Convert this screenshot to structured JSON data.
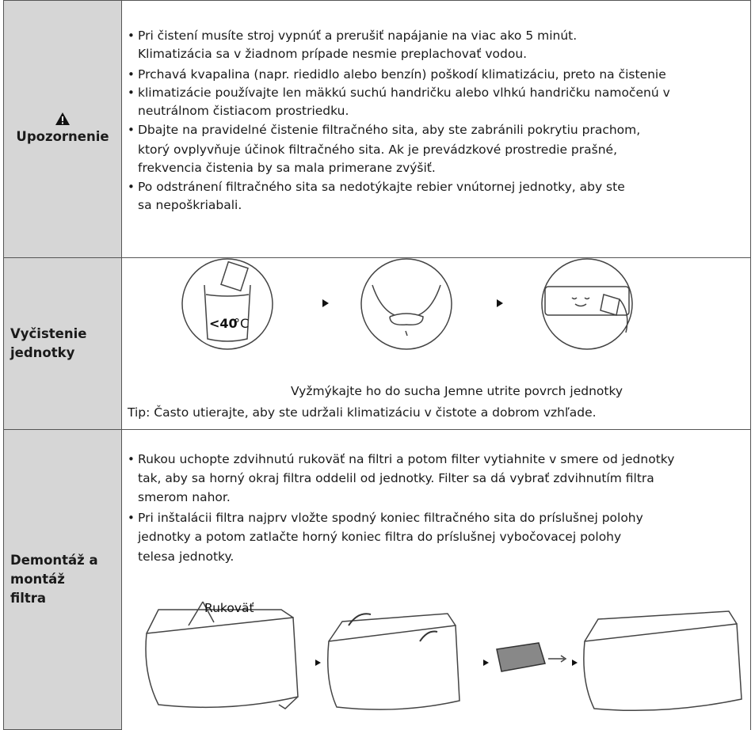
{
  "sections": [
    {
      "label": [
        "Upozornenie"
      ],
      "bullets": [
        [
          "Pri čistení musíte stroj vypnúť a prerušiť napájanie na viac ako 5 minút.",
          "Klimatizácia sa v žiadnom prípade nesmie preplachovať vodou."
        ],
        [
          "Prchavá kvapalina (napr. riedidlo alebo benzín) poškodí klimatizáciu, preto na čistenie"
        ],
        [
          "klimatizácie používajte len mäkkú suchú handričku alebo vlhkú handričku namočenú v",
          "neutrálnom čistiacom prostriedku."
        ],
        [
          "Dbajte na pravidelné čistenie filtračného sita, aby ste zabránili pokrytiu prachom,",
          "ktorý ovplyvňuje účinok filtračného sita. Ak je prevádzkové prostredie prašné,",
          "frekvencia čistenia by sa mala primerane zvýšiť."
        ],
        [
          "Po odstránení filtračného sita sa nedotýkajte rebier vnútornej jednotky, aby ste",
          "sa nepoškriabali."
        ]
      ]
    },
    {
      "label": [
        "Vyčistenie",
        "jednotky"
      ],
      "temperature": "<40",
      "unit": "°C",
      "caption": "Vyžmýkajte ho do sucha Jemne utrite povrch jednotky",
      "tip": "Tip: Často utierajte, aby ste udržali klimatizáciu v čistote a dobrom vzhľade."
    },
    {
      "label": [
        "Demontáž a",
        "montáž",
        "filtra"
      ],
      "bullets": [
        [
          "Rukou uchopte zdvihnutú rukoväť na filtri a potom filter vytiahnite v smere od jednotky",
          "tak, aby sa horný okraj filtra oddelil od jednotky. Filter sa dá vybrať zdvihnutím filtra",
          "smerom nahor."
        ],
        [
          "Pri inštalácii filtra najprv vložte spodný koniec filtračného sita do príslušnej polohy",
          "jednotky a potom zatlačte horný koniec filtra do príslušnej vybočovacej polohy",
          "telesa jednotky."
        ]
      ],
      "handle_label": "Rukoväť"
    }
  ]
}
